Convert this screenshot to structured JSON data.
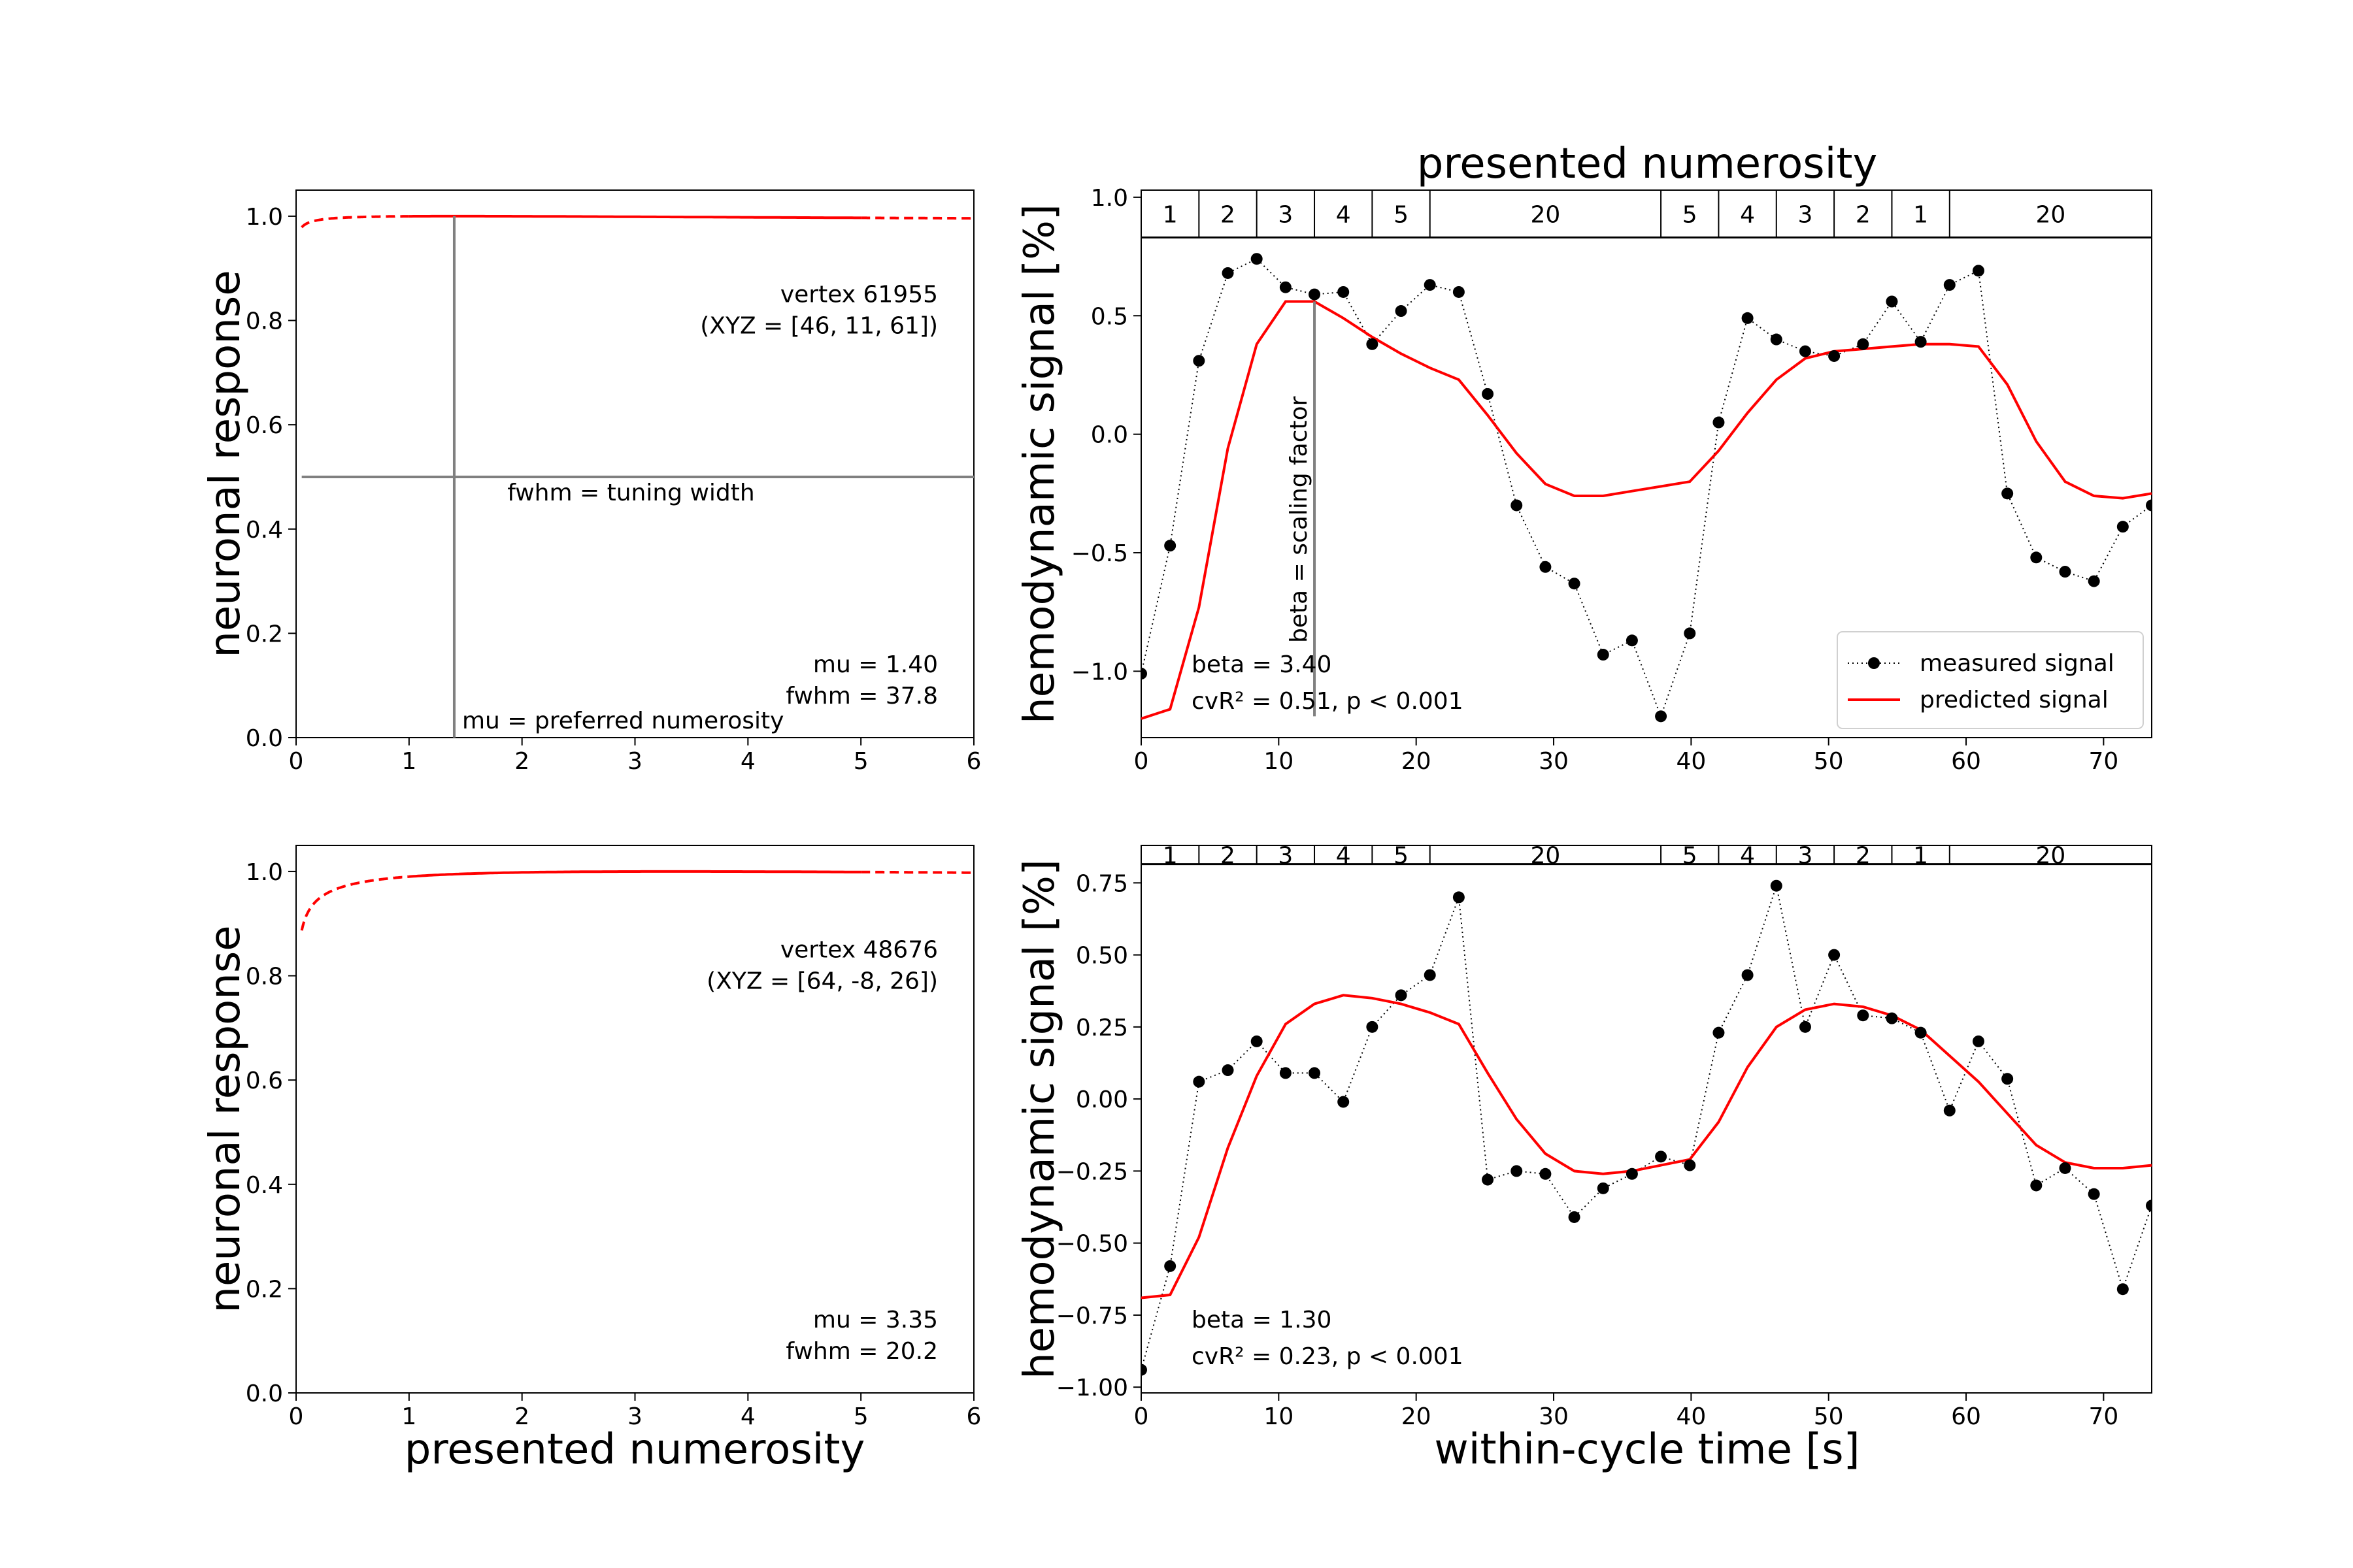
{
  "figure": {
    "top_title": "presented numerosity",
    "x_label_left": "presented numerosity",
    "x_label_right": "within-cycle time [s]"
  },
  "legend": {
    "measured": "measured signal",
    "predicted": "predicted signal"
  },
  "colors": {
    "predicted": "#ff0000",
    "measured": "#000000",
    "guide": "#808080"
  },
  "stimulus_sequence": {
    "blocks": [
      {
        "label": "1",
        "start": 0,
        "end": 4.2
      },
      {
        "label": "2",
        "start": 4.2,
        "end": 8.4
      },
      {
        "label": "3",
        "start": 8.4,
        "end": 12.6
      },
      {
        "label": "4",
        "start": 12.6,
        "end": 16.8
      },
      {
        "label": "5",
        "start": 16.8,
        "end": 21.0
      },
      {
        "label": "20",
        "start": 21.0,
        "end": 37.8
      },
      {
        "label": "5",
        "start": 37.8,
        "end": 42.0
      },
      {
        "label": "4",
        "start": 42.0,
        "end": 46.2
      },
      {
        "label": "3",
        "start": 46.2,
        "end": 50.4
      },
      {
        "label": "2",
        "start": 50.4,
        "end": 54.6
      },
      {
        "label": "1",
        "start": 54.6,
        "end": 58.8
      },
      {
        "label": "20",
        "start": 58.8,
        "end": 73.5
      }
    ]
  },
  "chart_data": [
    {
      "id": "tuning-top",
      "type": "line",
      "xlabel": "",
      "ylabel": "neuronal response",
      "xlim": [
        0,
        6
      ],
      "ylim": [
        0,
        1.05
      ],
      "xticks": [
        0,
        1,
        2,
        3,
        4,
        5,
        6
      ],
      "yticks": [
        0.0,
        0.2,
        0.4,
        0.6,
        0.8,
        1.0
      ],
      "mu": 1.4,
      "fwhm": 37.8,
      "solid_range": [
        1,
        5
      ],
      "vertex_text": "vertex 61955",
      "xyz_text": "(XYZ = [46, 11, 61])",
      "mu_text": "mu = 1.40",
      "fwhm_text": "fwhm = 37.8",
      "mu_label": "mu = preferred numerosity",
      "fwhm_label": "fwhm = tuning width",
      "show_guides": true
    },
    {
      "id": "signal-top",
      "type": "line",
      "xlabel": "",
      "ylabel": "hemodynamic signal [%]",
      "xlim": [
        0,
        73.5
      ],
      "ylim": [
        -1.28,
        1.03
      ],
      "plot_top_value": 0.83,
      "xticks": [
        0,
        10,
        20,
        30,
        40,
        50,
        60,
        70
      ],
      "yticks": [
        -1.0,
        -0.5,
        0.0,
        0.5,
        1.0
      ],
      "ytick_labels": [
        "−1.0",
        "−0.5",
        "0.0",
        "0.5",
        "1.0"
      ],
      "time": [
        0,
        2.1,
        4.2,
        6.3,
        8.4,
        10.5,
        12.6,
        14.7,
        16.8,
        18.9,
        21.0,
        23.1,
        25.2,
        27.3,
        29.4,
        31.5,
        33.6,
        35.7,
        37.8,
        39.9,
        42.0,
        44.1,
        46.2,
        48.3,
        50.4,
        52.5,
        54.6,
        56.7,
        58.8,
        60.9,
        63.0,
        65.1,
        67.2,
        69.3,
        71.4,
        73.5
      ],
      "measured": [
        -1.01,
        -0.47,
        0.31,
        0.68,
        0.74,
        0.62,
        0.59,
        0.6,
        0.38,
        0.52,
        0.63,
        0.6,
        0.17,
        -0.3,
        -0.56,
        -0.63,
        -0.93,
        -0.87,
        -1.19,
        -0.84,
        0.05,
        0.49,
        0.4,
        0.35,
        0.33,
        0.38,
        0.56,
        0.39,
        0.63,
        0.69,
        -0.25,
        -0.52,
        -0.58,
        -0.62,
        -0.39,
        -0.3
      ],
      "predicted": [
        -1.2,
        -1.16,
        -0.73,
        -0.06,
        0.38,
        0.56,
        0.56,
        0.49,
        0.41,
        0.34,
        0.28,
        0.23,
        0.08,
        -0.08,
        -0.21,
        -0.26,
        -0.26,
        -0.24,
        -0.22,
        -0.2,
        -0.07,
        0.09,
        0.23,
        0.32,
        0.35,
        0.36,
        0.37,
        0.38,
        0.38,
        0.37,
        0.21,
        -0.03,
        -0.2,
        -0.26,
        -0.27,
        -0.25
      ],
      "beta_text": "beta = 3.40",
      "cvr_text": "cvR² = 0.51, p < 0.001",
      "beta_label": "beta = scaling factor",
      "beta_x": 12.6
    },
    {
      "id": "tuning-bottom",
      "type": "line",
      "xlabel": "presented numerosity",
      "ylabel": "neuronal response",
      "xlim": [
        0,
        6
      ],
      "ylim": [
        0,
        1.05
      ],
      "xticks": [
        0,
        1,
        2,
        3,
        4,
        5,
        6
      ],
      "yticks": [
        0.0,
        0.2,
        0.4,
        0.6,
        0.8,
        1.0
      ],
      "mu": 3.35,
      "fwhm": 20.2,
      "solid_range": [
        1,
        5
      ],
      "vertex_text": "vertex 48676",
      "xyz_text": "(XYZ = [64, -8, 26])",
      "mu_text": "mu = 3.35",
      "fwhm_text": "fwhm = 20.2",
      "show_guides": false
    },
    {
      "id": "signal-bottom",
      "type": "line",
      "xlabel": "within-cycle time [s]",
      "ylabel": "hemodynamic signal [%]",
      "xlim": [
        0,
        73.5
      ],
      "ylim": [
        -1.02,
        0.88
      ],
      "plot_top_value": 0.815,
      "xticks": [
        0,
        10,
        20,
        30,
        40,
        50,
        60,
        70
      ],
      "yticks": [
        -1.0,
        -0.75,
        -0.5,
        -0.25,
        0.0,
        0.25,
        0.5,
        0.75
      ],
      "ytick_labels": [
        "−1.00",
        "−0.75",
        "−0.50",
        "−0.25",
        "0.00",
        "0.25",
        "0.50",
        "0.75"
      ],
      "time": [
        0,
        2.1,
        4.2,
        6.3,
        8.4,
        10.5,
        12.6,
        14.7,
        16.8,
        18.9,
        21.0,
        23.1,
        25.2,
        27.3,
        29.4,
        31.5,
        33.6,
        35.7,
        37.8,
        39.9,
        42.0,
        44.1,
        46.2,
        48.3,
        50.4,
        52.5,
        54.6,
        56.7,
        58.8,
        60.9,
        63.0,
        65.1,
        67.2,
        69.3,
        71.4,
        73.5
      ],
      "measured": [
        -0.94,
        -0.58,
        0.06,
        0.1,
        0.2,
        0.09,
        0.09,
        -0.01,
        0.25,
        0.36,
        0.43,
        0.7,
        -0.28,
        -0.25,
        -0.26,
        -0.41,
        -0.31,
        -0.26,
        -0.2,
        -0.23,
        0.23,
        0.43,
        0.74,
        0.25,
        0.5,
        0.29,
        0.28,
        0.23,
        -0.04,
        0.2,
        0.07,
        -0.3,
        -0.24,
        -0.33,
        -0.66,
        -0.37
      ],
      "predicted": [
        -0.69,
        -0.68,
        -0.48,
        -0.17,
        0.08,
        0.26,
        0.33,
        0.36,
        0.35,
        0.33,
        0.3,
        0.26,
        0.09,
        -0.07,
        -0.19,
        -0.25,
        -0.26,
        -0.25,
        -0.23,
        -0.21,
        -0.08,
        0.11,
        0.25,
        0.31,
        0.33,
        0.32,
        0.29,
        0.24,
        0.15,
        0.06,
        -0.05,
        -0.16,
        -0.22,
        -0.24,
        -0.24,
        -0.23
      ],
      "beta_text": "beta = 1.30",
      "cvr_text": "cvR² = 0.23, p < 0.001"
    }
  ]
}
